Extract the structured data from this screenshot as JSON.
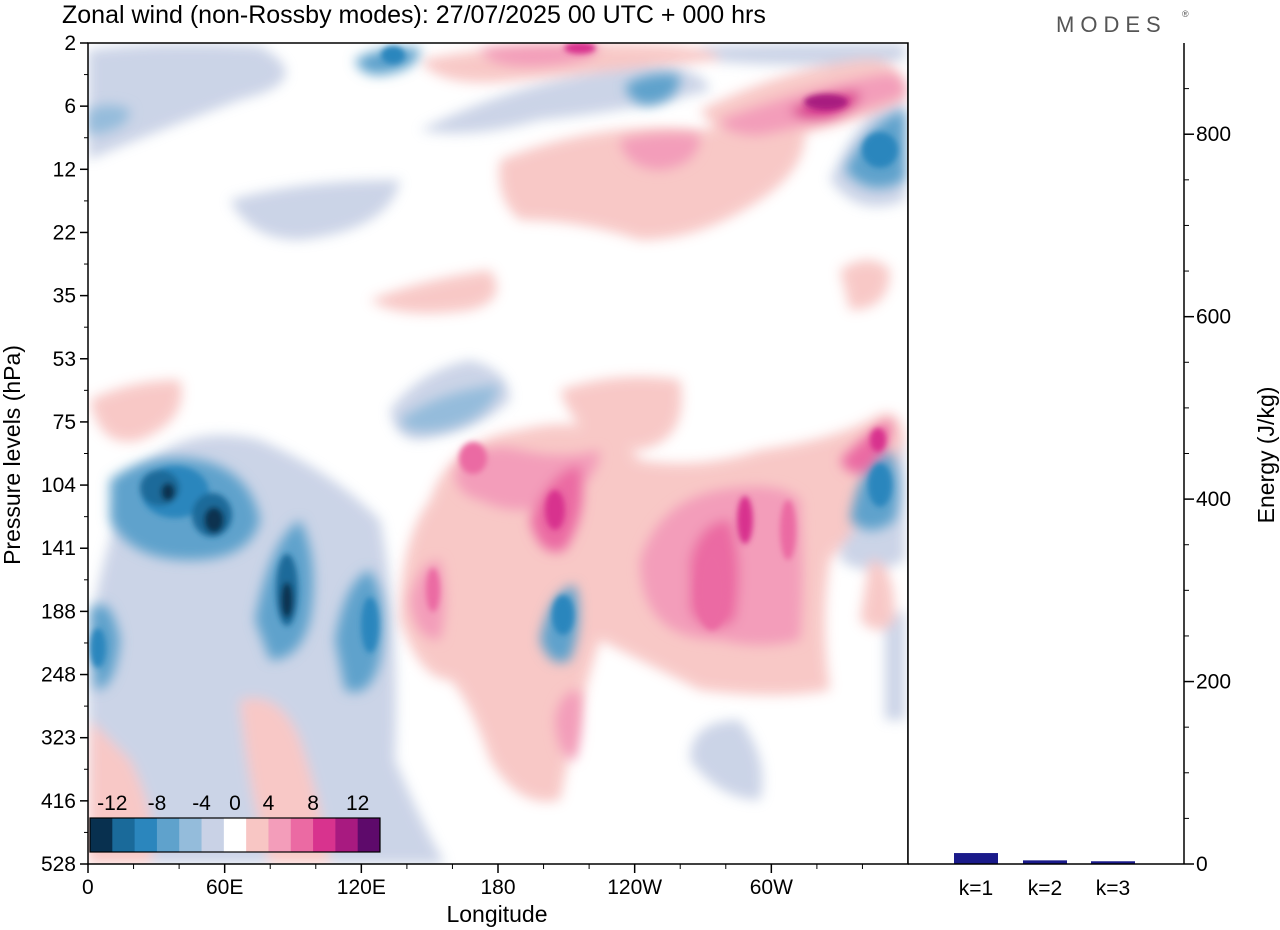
{
  "header": {
    "title": "Zonal wind (non-Rossby modes):  27/07/2025  00 UTC  + 000 hrs",
    "brand": "MODES",
    "brand_mark": "®"
  },
  "chart_data": [
    {
      "type": "heatmap",
      "title": "Zonal wind (non-Rossby modes):  27/07/2025  00 UTC  + 000 hrs",
      "xlabel": "Longitude",
      "ylabel": "Pressure levels (hPa)",
      "x_ticks": [
        "0",
        "60E",
        "120E",
        "180",
        "120W",
        "60W"
      ],
      "x_tick_degrees": [
        0,
        60,
        120,
        180,
        240,
        300
      ],
      "x_range_degrees": [
        0,
        360
      ],
      "y_ticks": [
        "2",
        "6",
        "12",
        "22",
        "35",
        "53",
        "75",
        "104",
        "141",
        "188",
        "248",
        "323",
        "416",
        "528"
      ],
      "colorbar": {
        "labels": [
          "-12",
          "-8",
          "-4",
          "0",
          "4",
          "8",
          "12"
        ],
        "levels": [
          -14,
          -12,
          -10,
          -8,
          -6,
          -4,
          -2,
          2,
          4,
          6,
          8,
          10,
          12,
          14
        ],
        "colors": [
          "#08304f",
          "#1a6a9a",
          "#2b86bd",
          "#5fa2cc",
          "#94bcdb",
          "#c9d2e6",
          "#ffffff",
          "#f8c6c4",
          "#f39dba",
          "#eb6aa3",
          "#d8338e",
          "#a81a80",
          "#5e0a6b"
        ]
      },
      "features": [
        {
          "name": "strong easterly core",
          "lon": 48,
          "level": "116",
          "value": -13
        },
        {
          "name": "easterly core",
          "lon": 35,
          "level": "108",
          "value": -12
        },
        {
          "name": "easterly tongue",
          "lon": 88,
          "level": "175",
          "value": -10
        },
        {
          "name": "easterly tongue",
          "lon": 123,
          "level": "188",
          "value": -9
        },
        {
          "name": "easterly blob",
          "lon": 4,
          "level": "230",
          "value": -8
        },
        {
          "name": "easterly blob",
          "lon": 209,
          "level": "188",
          "value": -9
        },
        {
          "name": "easterly blob",
          "lon": 348,
          "level": "104",
          "value": -10
        },
        {
          "name": "easterly blob",
          "lon": 345,
          "level": "10",
          "value": -10
        },
        {
          "name": "westerly band",
          "lon": 330,
          "level": "6",
          "value": 11
        },
        {
          "name": "westerly core",
          "lon": 270,
          "level": "165",
          "value": 8
        },
        {
          "name": "westerly core",
          "lon": 206,
          "level": "120",
          "value": 9
        },
        {
          "name": "westerly core",
          "lon": 167,
          "level": "100",
          "value": 8
        },
        {
          "name": "westerly core",
          "lon": 150,
          "level": "175",
          "value": 7
        }
      ]
    },
    {
      "type": "bar",
      "categories": [
        "k=1",
        "k=2",
        "k=3"
      ],
      "values": [
        12,
        4,
        3
      ],
      "ylabel": "Energy (J/kg)",
      "y_ticks": [
        "0",
        "200",
        "400",
        "600",
        "800"
      ],
      "ylim": [
        0,
        900
      ],
      "bar_color": "#1a1a8a"
    }
  ]
}
